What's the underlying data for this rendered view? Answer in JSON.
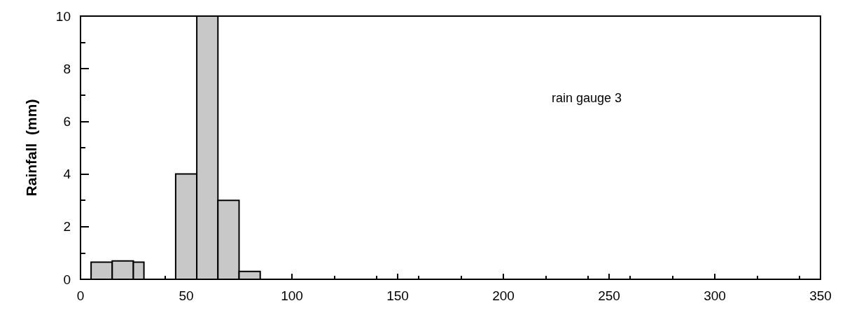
{
  "chart_data": {
    "type": "histogram",
    "ylabel": "Rainfall  (mm)",
    "annotations": [
      "rain gauge 3"
    ],
    "bins": [
      5,
      15,
      25,
      30,
      45,
      55,
      65,
      75,
      85
    ],
    "values": [
      0.65,
      0.7,
      0.65,
      0,
      4,
      10,
      3,
      0.3
    ],
    "color": "#c8c8c8",
    "xlim": [
      0,
      350
    ],
    "xticks": [
      0,
      50,
      100,
      150,
      200,
      250,
      300,
      350
    ],
    "ylim": [
      0,
      10
    ],
    "yticks": [
      0,
      2,
      4,
      6,
      8,
      10
    ],
    "grid": false
  }
}
